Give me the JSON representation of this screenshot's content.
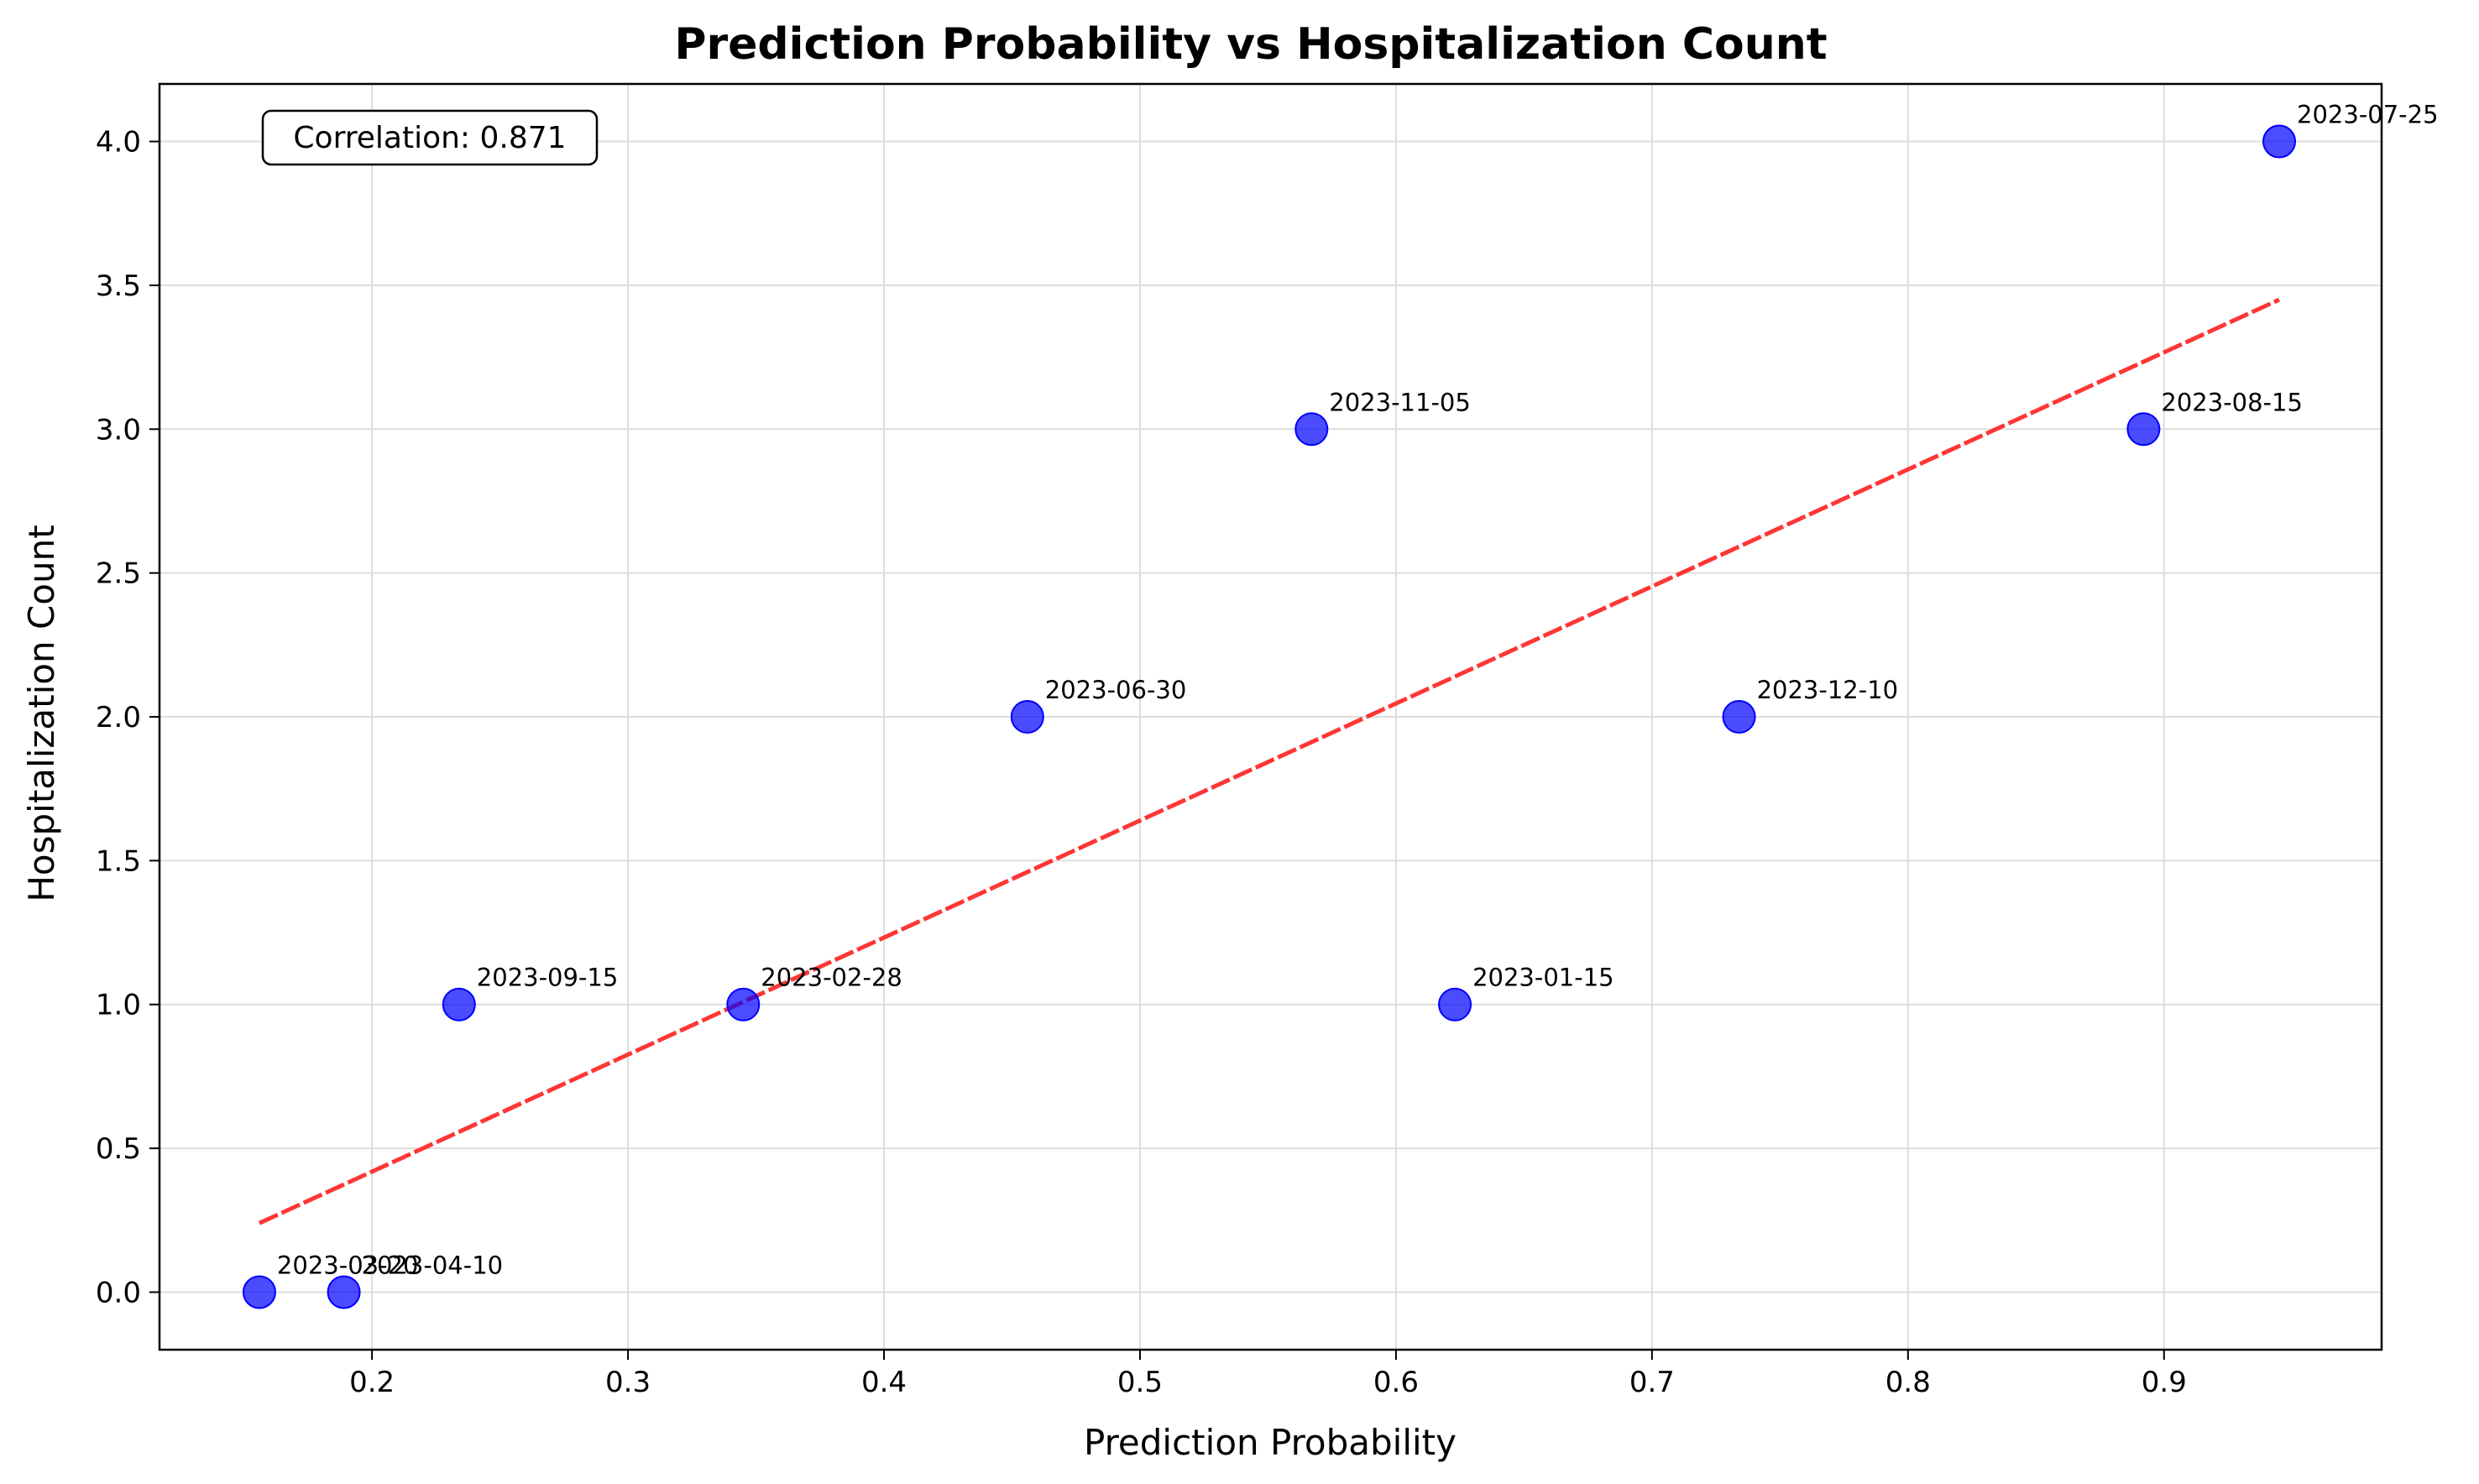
{
  "chart_data": {
    "type": "scatter",
    "title": "Prediction Probability vs Hospitalization Count",
    "xlabel": "Prediction Probability",
    "ylabel": "Hospitalization Count",
    "xlim": [
      0.117,
      0.985
    ],
    "ylim": [
      -0.2,
      4.2
    ],
    "xticks": [
      0.2,
      0.3,
      0.4,
      0.5,
      0.6,
      0.7,
      0.8,
      0.9
    ],
    "xtick_labels": [
      "0.2",
      "0.3",
      "0.4",
      "0.5",
      "0.6",
      "0.7",
      "0.8",
      "0.9"
    ],
    "yticks": [
      0.0,
      0.5,
      1.0,
      1.5,
      2.0,
      2.5,
      3.0,
      3.5,
      4.0
    ],
    "ytick_labels": [
      "0.0",
      "0.5",
      "1.0",
      "1.5",
      "2.0",
      "2.5",
      "3.0",
      "3.5",
      "4.0"
    ],
    "grid": true,
    "points": [
      {
        "label": "2023-01-15",
        "x": 0.623,
        "y": 1
      },
      {
        "label": "2023-02-28",
        "x": 0.345,
        "y": 1
      },
      {
        "label": "2023-03-20",
        "x": 0.156,
        "y": 0
      },
      {
        "label": "2023-04-10",
        "x": 0.189,
        "y": 0
      },
      {
        "label": "2023-06-30",
        "x": 0.456,
        "y": 2
      },
      {
        "label": "2023-07-25",
        "x": 0.945,
        "y": 4
      },
      {
        "label": "2023-08-15",
        "x": 0.892,
        "y": 3
      },
      {
        "label": "2023-09-15",
        "x": 0.234,
        "y": 1
      },
      {
        "label": "2023-11-05",
        "x": 0.567,
        "y": 3
      },
      {
        "label": "2023-12-10",
        "x": 0.734,
        "y": 2
      }
    ],
    "trendline": {
      "x": [
        0.156,
        0.945
      ],
      "y": [
        0.24,
        3.45
      ]
    },
    "annotation": "Correlation: 0.871",
    "colors": {
      "points": "#0000ff",
      "trendline": "#ff2020",
      "grid": "#dddddd"
    }
  }
}
